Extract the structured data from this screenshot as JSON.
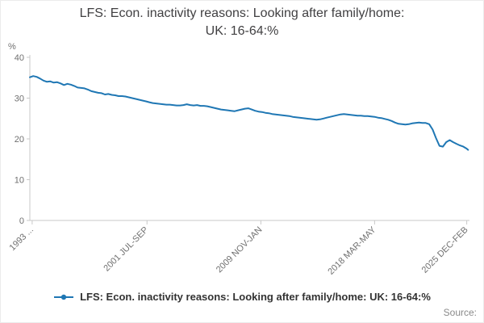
{
  "header": {
    "title_line1": "LFS: Econ. inactivity reasons: Looking after family/home:",
    "title_line2": "UK: 16-64:%"
  },
  "axes": {
    "unit_label": "%"
  },
  "legend": {
    "items": [
      {
        "label": "LFS: Econ. inactivity reasons: Looking after family/home: UK: 16-64:%"
      }
    ]
  },
  "footer": {
    "source_label": "Source:"
  },
  "colors": {
    "line": "#1f77b4",
    "axis": "#c9c9c9",
    "tick_text": "#707070",
    "title_text": "#414042"
  },
  "chart_data": {
    "type": "line",
    "title": "LFS: Econ. inactivity reasons: Looking after family/home: UK: 16-64:%",
    "xlabel": "",
    "ylabel": "%",
    "ylim": [
      0,
      40
    ],
    "xlim": [
      1993.0,
      2025.2
    ],
    "y_ticks": [
      0,
      10,
      20,
      30,
      40
    ],
    "x_tick_labels": [
      {
        "label": "1993 ...",
        "x": 1993.17
      },
      {
        "label": "2001 JUL-SEP",
        "x": 2001.58
      },
      {
        "label": "2009 NOV-JAN",
        "x": 2009.92
      },
      {
        "label": "2018 MAR-MAY",
        "x": 2018.25
      },
      {
        "label": "2025 DEC-FEB",
        "x": 2025.0
      }
    ],
    "x_label_rotation": -45,
    "grid": false,
    "legend_position": "bottom",
    "series": [
      {
        "name": "LFS: Econ. inactivity reasons: Looking after family/home: UK: 16-64:%",
        "points": [
          [
            1993.0,
            35.1
          ],
          [
            1993.25,
            35.4
          ],
          [
            1993.5,
            35.2
          ],
          [
            1993.75,
            34.8
          ],
          [
            1994.0,
            34.3
          ],
          [
            1994.25,
            34.0
          ],
          [
            1994.5,
            34.1
          ],
          [
            1994.75,
            33.8
          ],
          [
            1995.0,
            33.9
          ],
          [
            1995.25,
            33.6
          ],
          [
            1995.5,
            33.2
          ],
          [
            1995.75,
            33.5
          ],
          [
            1996.0,
            33.3
          ],
          [
            1996.25,
            33.0
          ],
          [
            1996.5,
            32.6
          ],
          [
            1996.75,
            32.5
          ],
          [
            1997.0,
            32.4
          ],
          [
            1997.25,
            32.1
          ],
          [
            1997.5,
            31.7
          ],
          [
            1997.75,
            31.5
          ],
          [
            1998.0,
            31.3
          ],
          [
            1998.25,
            31.2
          ],
          [
            1998.5,
            30.9
          ],
          [
            1998.75,
            31.0
          ],
          [
            1999.0,
            30.8
          ],
          [
            1999.25,
            30.7
          ],
          [
            1999.5,
            30.5
          ],
          [
            1999.75,
            30.5
          ],
          [
            2000.0,
            30.4
          ],
          [
            2000.25,
            30.2
          ],
          [
            2000.5,
            30.0
          ],
          [
            2000.75,
            29.8
          ],
          [
            2001.0,
            29.6
          ],
          [
            2001.25,
            29.4
          ],
          [
            2001.5,
            29.2
          ],
          [
            2001.75,
            29.0
          ],
          [
            2002.0,
            28.8
          ],
          [
            2002.25,
            28.7
          ],
          [
            2002.5,
            28.6
          ],
          [
            2002.75,
            28.5
          ],
          [
            2003.0,
            28.4
          ],
          [
            2003.25,
            28.4
          ],
          [
            2003.5,
            28.3
          ],
          [
            2003.75,
            28.2
          ],
          [
            2004.0,
            28.2
          ],
          [
            2004.25,
            28.3
          ],
          [
            2004.5,
            28.5
          ],
          [
            2004.75,
            28.3
          ],
          [
            2005.0,
            28.2
          ],
          [
            2005.25,
            28.3
          ],
          [
            2005.5,
            28.1
          ],
          [
            2005.75,
            28.1
          ],
          [
            2006.0,
            28.0
          ],
          [
            2006.25,
            27.8
          ],
          [
            2006.5,
            27.6
          ],
          [
            2006.75,
            27.4
          ],
          [
            2007.0,
            27.2
          ],
          [
            2007.25,
            27.1
          ],
          [
            2007.5,
            27.0
          ],
          [
            2007.75,
            26.9
          ],
          [
            2008.0,
            26.8
          ],
          [
            2008.25,
            27.0
          ],
          [
            2008.5,
            27.2
          ],
          [
            2008.75,
            27.4
          ],
          [
            2009.0,
            27.5
          ],
          [
            2009.25,
            27.2
          ],
          [
            2009.5,
            26.9
          ],
          [
            2009.75,
            26.7
          ],
          [
            2010.0,
            26.6
          ],
          [
            2010.25,
            26.4
          ],
          [
            2010.5,
            26.3
          ],
          [
            2010.75,
            26.1
          ],
          [
            2011.0,
            26.0
          ],
          [
            2011.25,
            25.9
          ],
          [
            2011.5,
            25.8
          ],
          [
            2011.75,
            25.7
          ],
          [
            2012.0,
            25.6
          ],
          [
            2012.25,
            25.4
          ],
          [
            2012.5,
            25.3
          ],
          [
            2012.75,
            25.2
          ],
          [
            2013.0,
            25.1
          ],
          [
            2013.25,
            25.0
          ],
          [
            2013.5,
            24.9
          ],
          [
            2013.75,
            24.8
          ],
          [
            2014.0,
            24.7
          ],
          [
            2014.25,
            24.8
          ],
          [
            2014.5,
            25.0
          ],
          [
            2014.75,
            25.2
          ],
          [
            2015.0,
            25.4
          ],
          [
            2015.25,
            25.6
          ],
          [
            2015.5,
            25.8
          ],
          [
            2015.75,
            26.0
          ],
          [
            2016.0,
            26.1
          ],
          [
            2016.25,
            26.0
          ],
          [
            2016.5,
            25.9
          ],
          [
            2016.75,
            25.8
          ],
          [
            2017.0,
            25.7
          ],
          [
            2017.25,
            25.7
          ],
          [
            2017.5,
            25.6
          ],
          [
            2017.75,
            25.6
          ],
          [
            2018.0,
            25.5
          ],
          [
            2018.25,
            25.4
          ],
          [
            2018.5,
            25.2
          ],
          [
            2018.75,
            25.1
          ],
          [
            2019.0,
            24.9
          ],
          [
            2019.25,
            24.7
          ],
          [
            2019.5,
            24.4
          ],
          [
            2019.75,
            24.0
          ],
          [
            2020.0,
            23.7
          ],
          [
            2020.25,
            23.6
          ],
          [
            2020.5,
            23.5
          ],
          [
            2020.75,
            23.6
          ],
          [
            2021.0,
            23.8
          ],
          [
            2021.25,
            23.9
          ],
          [
            2021.5,
            24.0
          ],
          [
            2021.75,
            23.9
          ],
          [
            2022.0,
            23.9
          ],
          [
            2022.25,
            23.6
          ],
          [
            2022.5,
            22.3
          ],
          [
            2022.75,
            20.2
          ],
          [
            2023.0,
            18.3
          ],
          [
            2023.25,
            18.1
          ],
          [
            2023.5,
            19.2
          ],
          [
            2023.75,
            19.7
          ],
          [
            2024.0,
            19.2
          ],
          [
            2024.25,
            18.8
          ],
          [
            2024.5,
            18.4
          ],
          [
            2024.75,
            18.1
          ],
          [
            2025.0,
            17.6
          ],
          [
            2025.1,
            17.3
          ]
        ]
      }
    ]
  }
}
